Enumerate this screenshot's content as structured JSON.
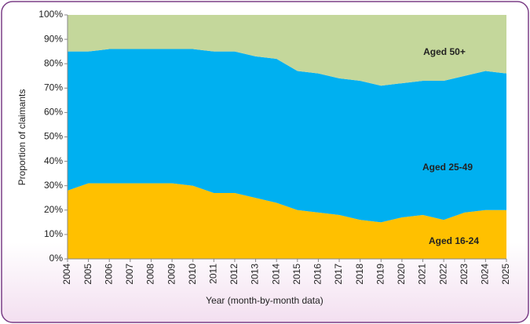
{
  "chart_data": {
    "type": "stacked-area",
    "x": [
      2004,
      2005,
      2006,
      2007,
      2008,
      2009,
      2010,
      2011,
      2012,
      2013,
      2014,
      2015,
      2016,
      2017,
      2018,
      2019,
      2020,
      2021,
      2022,
      2023,
      2024,
      2025
    ],
    "series": [
      {
        "name": "Aged 16-24",
        "color": "#ffc000",
        "values": [
          28,
          31,
          31,
          31,
          31,
          31,
          30,
          27,
          27,
          25,
          23,
          20,
          19,
          18,
          16,
          15,
          17,
          18,
          16,
          19,
          20,
          20
        ]
      },
      {
        "name": "Aged 25-49",
        "color": "#00b0f0",
        "values": [
          57,
          54,
          55,
          55,
          55,
          55,
          56,
          58,
          58,
          58,
          59,
          57,
          57,
          56,
          57,
          56,
          55,
          55,
          57,
          56,
          57,
          56
        ]
      },
      {
        "name": "Aged 50+",
        "color": "#c4d79b",
        "values": [
          15,
          15,
          14,
          14,
          14,
          14,
          14,
          15,
          15,
          17,
          18,
          23,
          24,
          26,
          27,
          29,
          28,
          27,
          27,
          25,
          23,
          24
        ]
      }
    ],
    "xlabel": "Year (month-by-month data)",
    "ylabel": "Proportion of claimants",
    "xlim": [
      2004,
      2025
    ],
    "xticks": [
      2004,
      2005,
      2006,
      2007,
      2008,
      2009,
      2010,
      2011,
      2012,
      2013,
      2014,
      2015,
      2016,
      2017,
      2018,
      2019,
      2020,
      2021,
      2022,
      2023,
      2024,
      2025
    ],
    "ylim": [
      0,
      100
    ],
    "yticks": [
      {
        "value": 0,
        "label": "0%"
      },
      {
        "value": 10,
        "label": "10%"
      },
      {
        "value": 20,
        "label": "20%"
      },
      {
        "value": 30,
        "label": "30%"
      },
      {
        "value": 40,
        "label": "40%"
      },
      {
        "value": 50,
        "label": "50%"
      },
      {
        "value": 60,
        "label": "60%"
      },
      {
        "value": 70,
        "label": "70%"
      },
      {
        "value": 80,
        "label": "80%"
      },
      {
        "value": 90,
        "label": "90%"
      },
      {
        "value": 100,
        "label": "100%"
      }
    ]
  }
}
